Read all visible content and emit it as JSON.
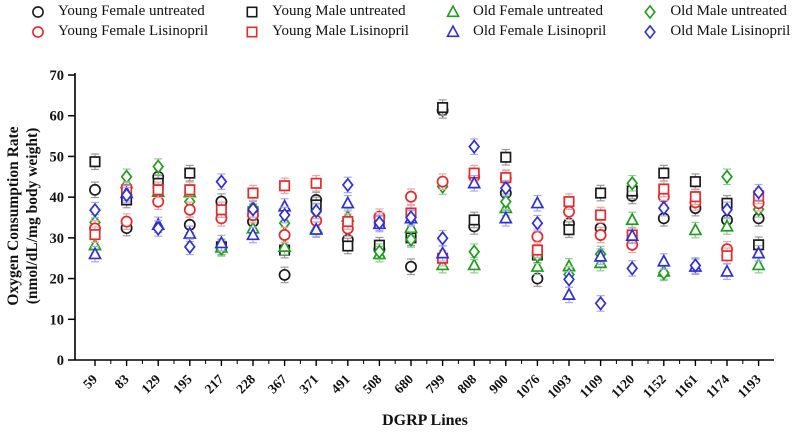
{
  "figure": {
    "background": "#ffffff"
  },
  "chart_data": {
    "type": "scatter",
    "title": "",
    "xlabel": "DGRP Lines",
    "ylabel_line1": "Oxygen Consumption Rate",
    "ylabel_line2": "(nmol/dL/mg body weight)",
    "ylim": [
      0,
      70
    ],
    "yticks": [
      0,
      10,
      20,
      30,
      40,
      50,
      60,
      70
    ],
    "grid": false,
    "legend_position": "top",
    "error_bar_estimate": 1.9,
    "categories": [
      "59",
      "83",
      "129",
      "195",
      "217",
      "228",
      "367",
      "371",
      "491",
      "508",
      "680",
      "799",
      "808",
      "900",
      "1076",
      "1093",
      "1109",
      "1120",
      "1152",
      "1161",
      "1174",
      "1193"
    ],
    "series": [
      {
        "name": "Young Female untreated",
        "marker": "circle",
        "color": "#1a1a1a",
        "error_color": "#9a9a9a",
        "values": [
          41.8,
          32.4,
          45.0,
          33.2,
          38.9,
          34.0,
          20.9,
          39.3,
          29.5,
          27.2,
          22.9,
          61.3,
          32.8,
          41.0,
          20.0,
          33.5,
          32.4,
          40.3,
          34.8,
          37.3,
          34.4,
          34.8
        ]
      },
      {
        "name": "Young Male untreated",
        "marker": "square",
        "color": "#1a1a1a",
        "error_color": "#9a9a9a",
        "values": [
          48.7,
          39.3,
          43.4,
          45.9,
          27.8,
          36.4,
          27.0,
          38.1,
          28.0,
          28.2,
          30.0,
          62.0,
          34.4,
          49.8,
          25.8,
          32.0,
          41.0,
          41.5,
          45.9,
          43.8,
          38.5,
          28.3
        ]
      },
      {
        "name": "Old Female untreated",
        "marker": "triangle",
        "color": "#1c9e1c",
        "error_color": "#94ca94",
        "values": [
          28.2,
          43.4,
          41.3,
          41.2,
          27.6,
          32.3,
          27.8,
          32.3,
          35.2,
          26.0,
          32.5,
          23.3,
          23.3,
          37.3,
          22.9,
          23.0,
          23.8,
          34.4,
          21.7,
          31.9,
          32.8,
          23.3
        ]
      },
      {
        "name": "Old Male untreated",
        "marker": "diamond",
        "color": "#1c9e1c",
        "error_color": "#94ca94",
        "values": [
          33.8,
          45.0,
          47.5,
          38.9,
          27.4,
          37.3,
          33.6,
          36.4,
          33.4,
          26.6,
          29.6,
          42.6,
          26.6,
          38.9,
          25.6,
          21.0,
          26.0,
          43.4,
          21.4,
          39.5,
          45.0,
          37.0
        ]
      },
      {
        "name": "Young Female Lisinopril",
        "marker": "circle",
        "color": "#e8282b",
        "error_color": "#f0a6a6",
        "values": [
          32.3,
          34.0,
          38.9,
          36.9,
          34.8,
          35.6,
          30.7,
          34.2,
          32.3,
          35.2,
          40.1,
          43.8,
          45.0,
          44.6,
          30.3,
          36.4,
          30.7,
          28.3,
          40.1,
          38.7,
          27.2,
          38.5
        ]
      },
      {
        "name": "Young Male Lisinopril",
        "marker": "square",
        "color": "#e8282b",
        "error_color": "#f0a6a6",
        "values": [
          30.8,
          41.8,
          41.8,
          41.8,
          36.9,
          41.0,
          42.8,
          43.4,
          34.0,
          34.3,
          36.1,
          25.0,
          45.9,
          44.8,
          27.0,
          38.9,
          35.6,
          30.7,
          42.0,
          40.1,
          25.6,
          40.3
        ]
      },
      {
        "name": "Old Female Lisinopril",
        "marker": "triangle",
        "color": "#2f2fd8",
        "error_color": "#a8a8ec",
        "values": [
          26.0,
          41.0,
          33.2,
          31.0,
          28.7,
          30.7,
          37.7,
          32.0,
          38.5,
          33.4,
          34.8,
          26.2,
          43.4,
          34.8,
          38.5,
          16.0,
          25.4,
          30.5,
          24.2,
          22.9,
          21.7,
          26.2
        ]
      },
      {
        "name": "Old Male Lisinopril",
        "marker": "diamond",
        "color": "#2f2fd8",
        "error_color": "#a8a8ec",
        "values": [
          36.8,
          40.5,
          32.3,
          27.8,
          43.8,
          37.0,
          35.6,
          36.6,
          43.0,
          33.7,
          35.0,
          29.9,
          52.4,
          42.2,
          33.6,
          19.8,
          13.9,
          22.5,
          37.3,
          23.2,
          36.9,
          41.2
        ]
      }
    ]
  }
}
